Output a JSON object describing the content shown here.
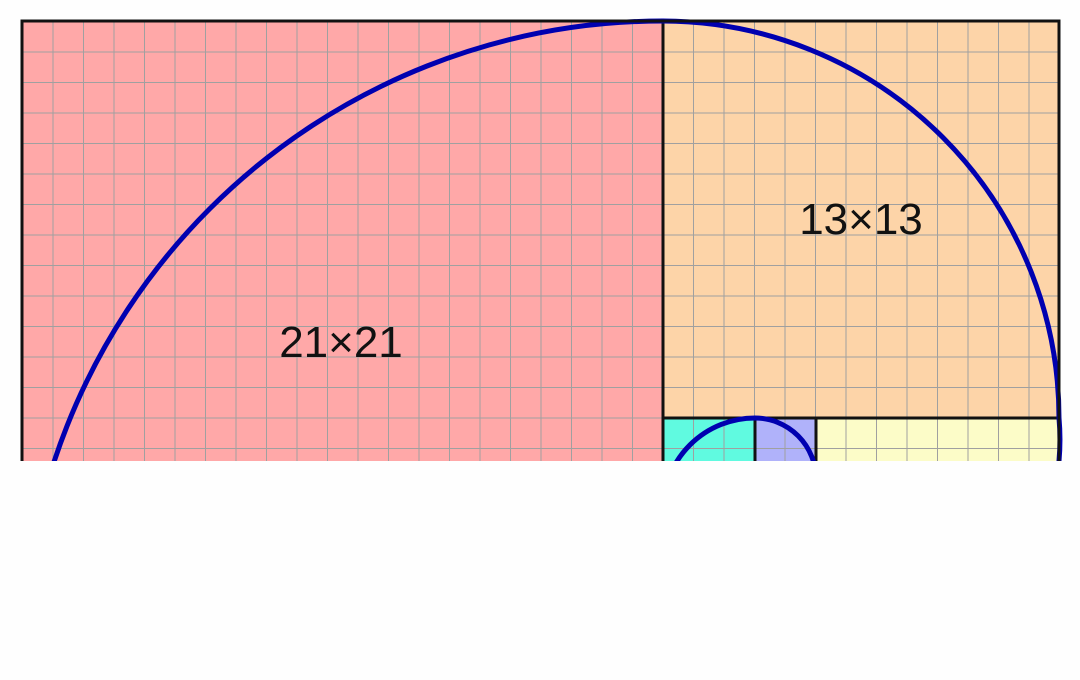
{
  "diagram": {
    "labels": {
      "square_21": "21×21",
      "square_13": "13×13"
    },
    "colors": {
      "square_21": "#ffa8a8",
      "square_13": "#fdd4a8",
      "square_8": "#fcfcc8",
      "square_2": "#60fae0",
      "square_1": "#b0b2fa",
      "grid": "#a0a0a0",
      "border": "#111111",
      "spiral": "#0000b0",
      "background": "#fefefe"
    }
  }
}
